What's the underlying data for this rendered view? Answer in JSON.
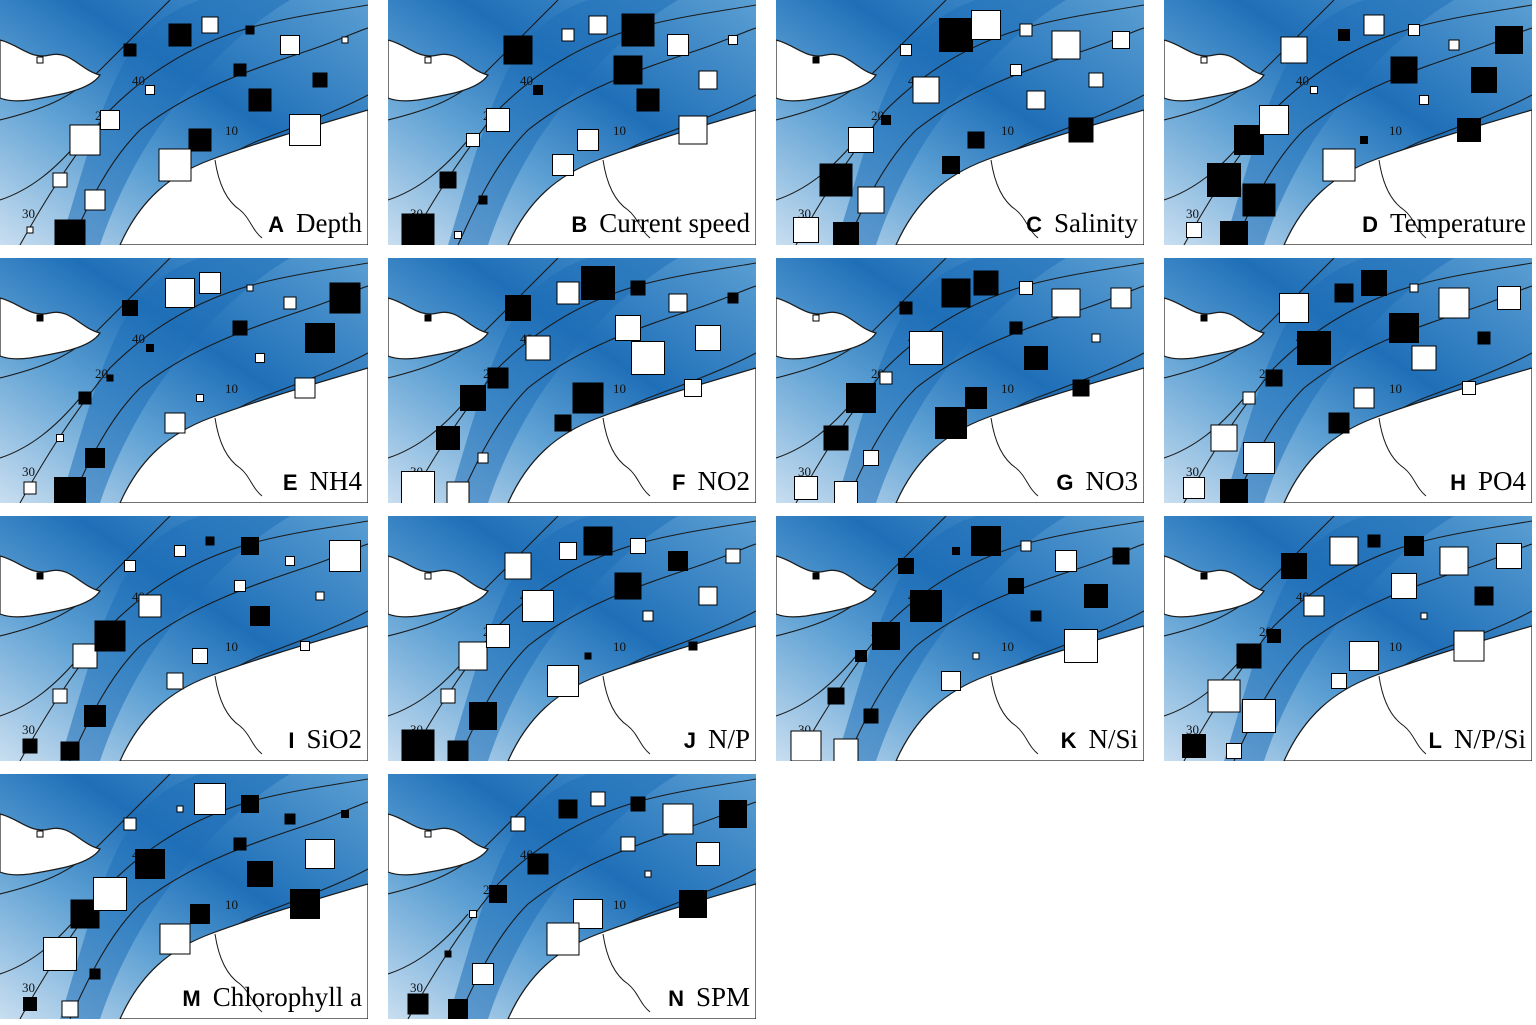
{
  "figure": {
    "panels": [
      {
        "letter": "A",
        "title": "Depth",
        "seed": 11
      },
      {
        "letter": "B",
        "title": "Current speed",
        "seed": 23
      },
      {
        "letter": "C",
        "title": "Salinity",
        "seed": 37
      },
      {
        "letter": "D",
        "title": "Temperature",
        "seed": 41
      },
      {
        "letter": "E",
        "title": "NH4",
        "seed": 53
      },
      {
        "letter": "F",
        "title": "NO2",
        "seed": 67
      },
      {
        "letter": "G",
        "title": "NO3",
        "seed": 71
      },
      {
        "letter": "H",
        "title": "PO4",
        "seed": 83
      },
      {
        "letter": "I",
        "title": "SiO2",
        "seed": 97
      },
      {
        "letter": "J",
        "title": "N/P",
        "seed": 101
      },
      {
        "letter": "K",
        "title": "N/Si",
        "seed": 113
      },
      {
        "letter": "L",
        "title": "N/P/Si",
        "seed": 127
      },
      {
        "letter": "M",
        "title": "Chlorophyll a",
        "seed": 131
      },
      {
        "letter": "N",
        "title": "SPM",
        "seed": 139
      }
    ],
    "contour_labels": [
      "10",
      "20",
      "30",
      "40"
    ],
    "colors": {
      "deep_water": "#1f6fb8",
      "mid_water": "#5b9fd3",
      "shallow_water": "#c9def0",
      "land": "#ffffff",
      "contour": "#1a1a1a",
      "positive_marker": "#000000",
      "negative_marker": "#ffffff"
    },
    "legend_semantics": {
      "filled_square": "positive",
      "open_square": "negative"
    }
  }
}
